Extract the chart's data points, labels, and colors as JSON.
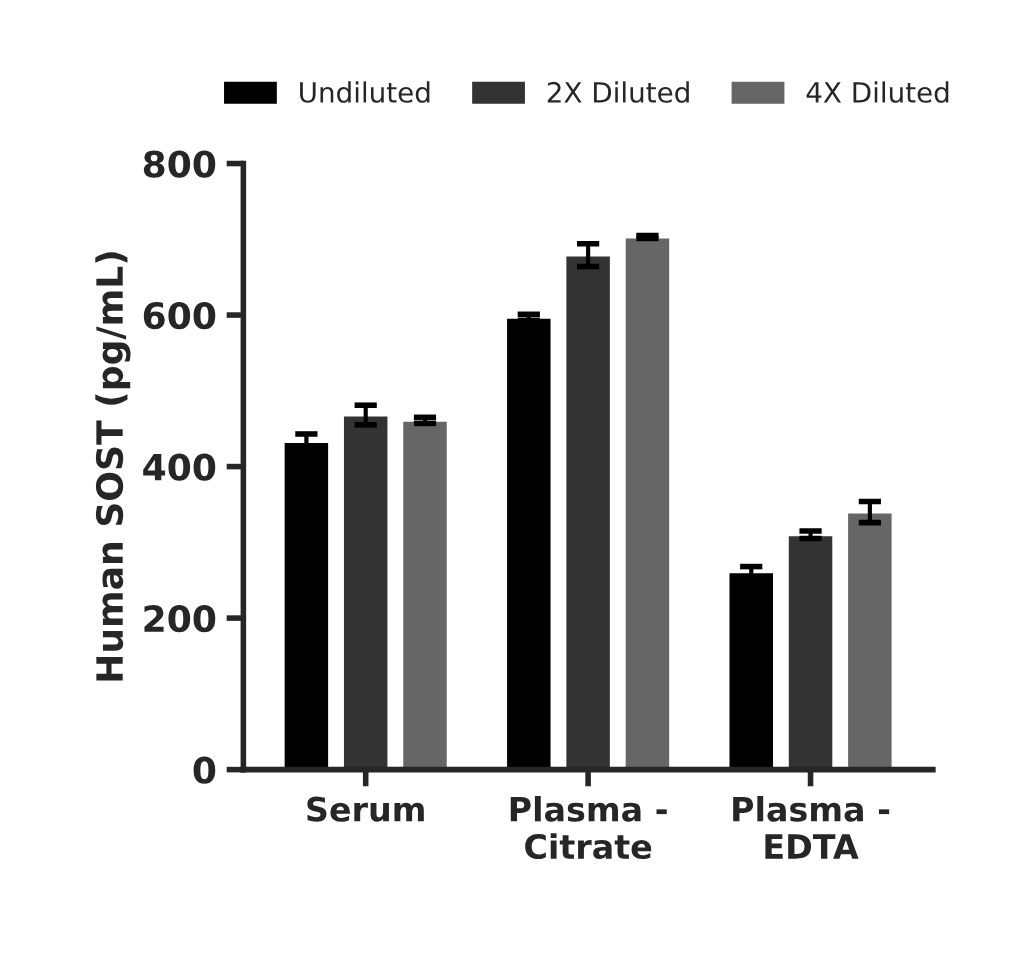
{
  "chart_data": {
    "type": "bar",
    "ylabel": "Human SOST (pg/mL)",
    "categories": [
      "Serum",
      "Plasma -\nCitrate",
      "Plasma -\nEDTA"
    ],
    "series": [
      {
        "name": "Undiluted",
        "color": "#000000",
        "values": [
          433,
          597,
          261
        ],
        "errors": [
          10,
          4,
          7
        ]
      },
      {
        "name": "2X Diluted",
        "color": "#333333",
        "values": [
          468,
          679,
          310
        ],
        "errors": [
          13,
          15,
          5
        ]
      },
      {
        "name": "4X Diluted",
        "color": "#666666",
        "values": [
          461,
          703,
          340
        ],
        "errors": [
          4,
          2,
          14
        ]
      }
    ],
    "ylim": [
      0,
      800
    ],
    "yticks": [
      0,
      200,
      400,
      600,
      800
    ],
    "grid": false,
    "legend": "top"
  }
}
